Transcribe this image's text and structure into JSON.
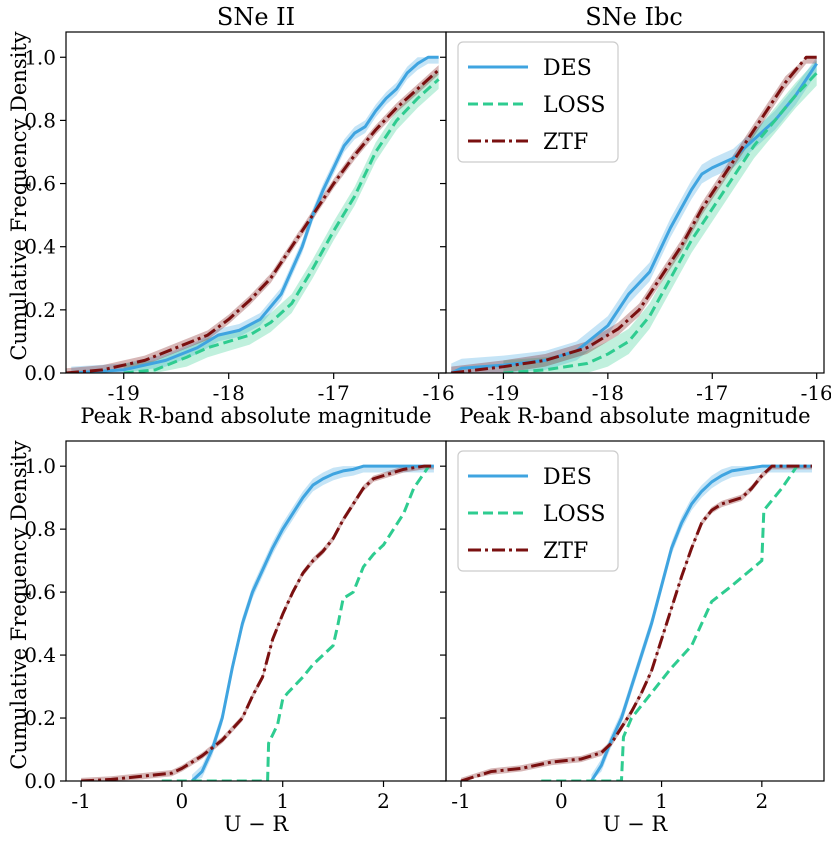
{
  "figure": {
    "ylabel": "Cumulative Frequency Density",
    "colors": {
      "DES": "#3fa4e0",
      "LOSS": "#2ecc90",
      "ZTF": "#7a1010"
    }
  },
  "chart_data": [
    {
      "type": "line",
      "title": "SNe II",
      "xlabel": "Peak R-band absolute magnitude",
      "ylabel": "Cumulative Frequency Density",
      "xlim": [
        -19.55,
        -15.93
      ],
      "ylim": [
        0,
        1.08
      ],
      "xticks": [
        -19,
        -18,
        -17,
        -16
      ],
      "xticklabels": [
        "-19",
        "-18",
        "-17",
        "-16"
      ],
      "yticks": [
        0,
        0.2,
        0.4,
        0.6,
        0.8,
        1.0
      ],
      "yticklabels": [
        "0.0",
        "0.2",
        "0.4",
        "0.6",
        "0.8",
        "1.0"
      ],
      "legend": null,
      "series": [
        {
          "name": "DES",
          "style": "solid",
          "band": 0.02,
          "x": [
            -19.5,
            -19.0,
            -18.6,
            -18.3,
            -18.1,
            -17.9,
            -17.7,
            -17.5,
            -17.3,
            -17.2,
            -17.1,
            -17.0,
            -16.9,
            -16.8,
            -16.7,
            -16.6,
            -16.5,
            -16.4,
            -16.3,
            -16.2,
            -16.1,
            -16.0
          ],
          "y": [
            0.0,
            0.01,
            0.04,
            0.08,
            0.12,
            0.135,
            0.17,
            0.25,
            0.4,
            0.5,
            0.58,
            0.65,
            0.72,
            0.76,
            0.78,
            0.83,
            0.87,
            0.9,
            0.95,
            0.98,
            1.0,
            1.0
          ]
        },
        {
          "name": "LOSS",
          "style": "dashed",
          "band": 0.03,
          "x": [
            -19.0,
            -18.7,
            -18.4,
            -18.2,
            -18.0,
            -17.8,
            -17.6,
            -17.4,
            -17.2,
            -17.0,
            -16.8,
            -16.6,
            -16.4,
            -16.2,
            -16.0
          ],
          "y": [
            0.0,
            0.01,
            0.05,
            0.08,
            0.1,
            0.12,
            0.16,
            0.22,
            0.33,
            0.45,
            0.56,
            0.7,
            0.8,
            0.87,
            0.93
          ]
        },
        {
          "name": "ZTF",
          "style": "dashdot",
          "band": 0.015,
          "x": [
            -19.55,
            -19.2,
            -18.8,
            -18.5,
            -18.2,
            -18.0,
            -17.8,
            -17.6,
            -17.4,
            -17.2,
            -17.0,
            -16.8,
            -16.6,
            -16.4,
            -16.2,
            -16.0
          ],
          "y": [
            0.0,
            0.01,
            0.04,
            0.08,
            0.12,
            0.17,
            0.23,
            0.3,
            0.4,
            0.5,
            0.6,
            0.69,
            0.77,
            0.84,
            0.9,
            0.96
          ]
        }
      ]
    },
    {
      "type": "line",
      "title": "SNe Ibc",
      "xlabel": "Peak R-band absolute magnitude",
      "ylabel": "",
      "xlim": [
        -19.55,
        -15.93
      ],
      "ylim": [
        0,
        1.08
      ],
      "xticks": [
        -19,
        -18,
        -17,
        -16
      ],
      "xticklabels": [
        "-19",
        "-18",
        "-17",
        "-16"
      ],
      "yticks": [
        0,
        0.2,
        0.4,
        0.6,
        0.8,
        1.0
      ],
      "yticklabels": [
        "",
        "",
        "",
        "",
        "",
        ""
      ],
      "legend": {
        "position": "top-left",
        "entries": [
          "DES",
          "LOSS",
          "ZTF"
        ]
      },
      "series": [
        {
          "name": "DES",
          "style": "solid",
          "band": 0.03,
          "x": [
            -19.5,
            -19.4,
            -19.0,
            -18.6,
            -18.3,
            -18.0,
            -17.8,
            -17.6,
            -17.4,
            -17.2,
            -17.1,
            -17.0,
            -16.8,
            -16.6,
            -16.4,
            -16.2,
            -16.0
          ],
          "y": [
            0.0,
            0.015,
            0.025,
            0.04,
            0.07,
            0.15,
            0.25,
            0.32,
            0.46,
            0.58,
            0.63,
            0.65,
            0.68,
            0.74,
            0.8,
            0.88,
            0.98
          ]
        },
        {
          "name": "LOSS",
          "style": "dashed",
          "band": 0.04,
          "x": [
            -19.0,
            -18.6,
            -18.2,
            -18.0,
            -17.8,
            -17.6,
            -17.4,
            -17.2,
            -17.0,
            -16.8,
            -16.6,
            -16.4,
            -16.2,
            -16.0
          ],
          "y": [
            0.0,
            0.01,
            0.03,
            0.06,
            0.1,
            0.18,
            0.3,
            0.42,
            0.52,
            0.62,
            0.72,
            0.8,
            0.88,
            0.95
          ]
        },
        {
          "name": "ZTF",
          "style": "dashdot",
          "band": 0.02,
          "x": [
            -19.5,
            -19.0,
            -18.6,
            -18.2,
            -17.9,
            -17.7,
            -17.5,
            -17.3,
            -17.1,
            -16.9,
            -16.7,
            -16.5,
            -16.3,
            -16.1,
            -16.0
          ],
          "y": [
            0.0,
            0.02,
            0.04,
            0.08,
            0.14,
            0.2,
            0.3,
            0.4,
            0.52,
            0.62,
            0.72,
            0.82,
            0.92,
            1.0,
            1.0
          ]
        }
      ]
    },
    {
      "type": "line",
      "title": "",
      "xlabel": "U − R",
      "ylabel": "Cumulative Frequency Density",
      "xlim": [
        -1.15,
        2.62
      ],
      "ylim": [
        0,
        1.08
      ],
      "xticks": [
        -1,
        0,
        1,
        2
      ],
      "xticklabels": [
        "-1",
        "0",
        "1",
        "2"
      ],
      "yticks": [
        0,
        0.2,
        0.4,
        0.6,
        0.8,
        1.0
      ],
      "yticklabels": [
        "0.0",
        "0.2",
        "0.4",
        "0.6",
        "0.8",
        "1.0"
      ],
      "legend": null,
      "series": [
        {
          "name": "DES",
          "style": "solid",
          "band": 0.02,
          "x": [
            0.1,
            0.2,
            0.3,
            0.4,
            0.5,
            0.6,
            0.7,
            0.8,
            0.9,
            1.0,
            1.1,
            1.2,
            1.3,
            1.4,
            1.5,
            1.6,
            1.7,
            1.8,
            1.9,
            2.0,
            2.1,
            2.3,
            2.5
          ],
          "y": [
            0.0,
            0.03,
            0.1,
            0.2,
            0.36,
            0.5,
            0.6,
            0.67,
            0.74,
            0.8,
            0.85,
            0.9,
            0.94,
            0.96,
            0.975,
            0.985,
            0.99,
            1.0,
            1.0,
            1.0,
            1.0,
            1.0,
            1.0
          ]
        },
        {
          "name": "LOSS",
          "style": "dashed",
          "band": 0.0,
          "x": [
            -0.2,
            0.85,
            0.86,
            0.95,
            1.0,
            1.05,
            1.2,
            1.3,
            1.4,
            1.5,
            1.55,
            1.6,
            1.7,
            1.8,
            1.9,
            2.0,
            2.1,
            2.2,
            2.3,
            2.45
          ],
          "y": [
            0.0,
            0.0,
            0.12,
            0.18,
            0.26,
            0.28,
            0.33,
            0.37,
            0.4,
            0.43,
            0.5,
            0.58,
            0.6,
            0.68,
            0.72,
            0.75,
            0.8,
            0.85,
            0.93,
            1.0
          ]
        },
        {
          "name": "ZTF",
          "style": "dashdot",
          "band": 0.01,
          "x": [
            -1.0,
            -0.7,
            -0.4,
            -0.1,
            0.0,
            0.2,
            0.4,
            0.6,
            0.7,
            0.8,
            0.9,
            1.0,
            1.1,
            1.2,
            1.3,
            1.4,
            1.5,
            1.6,
            1.7,
            1.8,
            1.9,
            2.0,
            2.2,
            2.4,
            2.5
          ],
          "y": [
            0.0,
            0.005,
            0.015,
            0.025,
            0.04,
            0.08,
            0.13,
            0.2,
            0.27,
            0.33,
            0.45,
            0.53,
            0.6,
            0.66,
            0.7,
            0.73,
            0.77,
            0.83,
            0.88,
            0.93,
            0.96,
            0.97,
            0.99,
            1.0,
            1.0
          ]
        }
      ]
    },
    {
      "type": "line",
      "title": "",
      "xlabel": "U − R",
      "ylabel": "",
      "xlim": [
        -1.15,
        2.62
      ],
      "ylim": [
        0,
        1.08
      ],
      "xticks": [
        -1,
        0,
        1,
        2
      ],
      "xticklabels": [
        "-1",
        "0",
        "1",
        "2"
      ],
      "yticks": [
        0,
        0.2,
        0.4,
        0.6,
        0.8,
        1.0
      ],
      "yticklabels": [
        "",
        "",
        "",
        "",
        "",
        ""
      ],
      "legend": {
        "position": "top-left",
        "entries": [
          "DES",
          "LOSS",
          "ZTF"
        ]
      },
      "series": [
        {
          "name": "DES",
          "style": "solid",
          "band": 0.02,
          "x": [
            0.3,
            0.4,
            0.5,
            0.6,
            0.7,
            0.8,
            0.9,
            1.0,
            1.1,
            1.2,
            1.3,
            1.4,
            1.5,
            1.6,
            1.7,
            1.8,
            1.9,
            2.0,
            2.2,
            2.5
          ],
          "y": [
            0.0,
            0.05,
            0.13,
            0.2,
            0.3,
            0.4,
            0.5,
            0.62,
            0.74,
            0.82,
            0.88,
            0.92,
            0.95,
            0.97,
            0.985,
            0.99,
            0.995,
            1.0,
            1.0,
            1.0
          ]
        },
        {
          "name": "LOSS",
          "style": "dashed",
          "band": 0.0,
          "x": [
            -0.2,
            0.6,
            0.62,
            0.7,
            0.9,
            1.1,
            1.3,
            1.5,
            1.7,
            2.0,
            2.02,
            2.2,
            2.35
          ],
          "y": [
            0.0,
            0.0,
            0.14,
            0.2,
            0.28,
            0.36,
            0.43,
            0.57,
            0.62,
            0.7,
            0.86,
            0.93,
            1.0
          ]
        },
        {
          "name": "ZTF",
          "style": "dashdot",
          "band": 0.01,
          "x": [
            -1.0,
            -0.7,
            -0.4,
            -0.1,
            0.2,
            0.4,
            0.5,
            0.6,
            0.7,
            0.8,
            0.9,
            1.0,
            1.1,
            1.2,
            1.3,
            1.4,
            1.5,
            1.6,
            1.7,
            1.8,
            1.9,
            2.0,
            2.1,
            2.2,
            2.5
          ],
          "y": [
            0.0,
            0.03,
            0.04,
            0.06,
            0.07,
            0.09,
            0.12,
            0.17,
            0.22,
            0.28,
            0.35,
            0.45,
            0.55,
            0.65,
            0.74,
            0.82,
            0.86,
            0.88,
            0.89,
            0.9,
            0.93,
            0.97,
            1.0,
            1.0,
            1.0
          ]
        }
      ]
    }
  ]
}
